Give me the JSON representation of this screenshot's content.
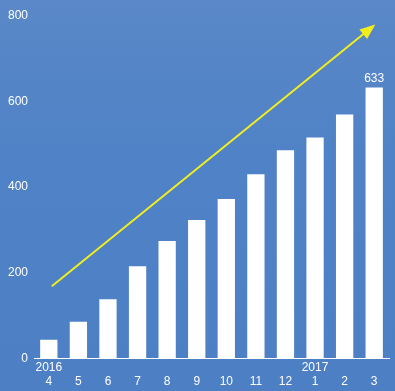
{
  "chart_data": {
    "type": "bar",
    "categories": [
      "4",
      "5",
      "6",
      "7",
      "8",
      "9",
      "10",
      "11",
      "12",
      "1",
      "2",
      "3"
    ],
    "values": [
      43,
      85,
      138,
      215,
      274,
      323,
      372,
      430,
      486,
      516,
      570,
      633
    ],
    "value_labels": [
      null,
      null,
      null,
      null,
      null,
      null,
      null,
      null,
      null,
      null,
      null,
      "633"
    ],
    "data_labels": true,
    "annotations": [
      {
        "text": "2016",
        "at": "4"
      },
      {
        "text": "2017",
        "at": "1"
      }
    ],
    "color": "#ffffff",
    "ylim": [
      0,
      800
    ],
    "yticks": [
      0,
      200,
      400,
      600,
      800
    ],
    "grid": false
  }
}
